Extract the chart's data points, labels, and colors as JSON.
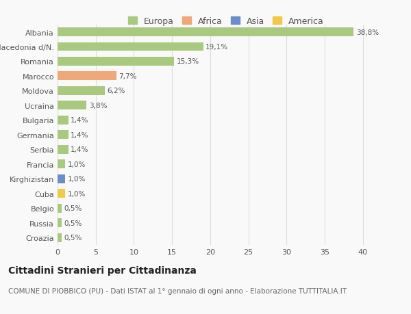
{
  "categories": [
    "Albania",
    "Macedonia d/N.",
    "Romania",
    "Marocco",
    "Moldova",
    "Ucraina",
    "Bulgaria",
    "Germania",
    "Serbia",
    "Francia",
    "Kirghizistan",
    "Cuba",
    "Belgio",
    "Russia",
    "Croazia"
  ],
  "values": [
    38.8,
    19.1,
    15.3,
    7.7,
    6.2,
    3.8,
    1.4,
    1.4,
    1.4,
    1.0,
    1.0,
    1.0,
    0.5,
    0.5,
    0.5
  ],
  "labels": [
    "38,8%",
    "19,1%",
    "15,3%",
    "7,7%",
    "6,2%",
    "3,8%",
    "1,4%",
    "1,4%",
    "1,4%",
    "1,0%",
    "1,0%",
    "1,0%",
    "0,5%",
    "0,5%",
    "0,5%"
  ],
  "colors": [
    "#a8c97f",
    "#a8c97f",
    "#a8c97f",
    "#f0a878",
    "#a8c97f",
    "#a8c97f",
    "#a8c97f",
    "#a8c97f",
    "#a8c97f",
    "#a8c97f",
    "#6a8fc8",
    "#f0c84a",
    "#a8c97f",
    "#a8c97f",
    "#a8c97f"
  ],
  "legend_labels": [
    "Europa",
    "Africa",
    "Asia",
    "America"
  ],
  "legend_colors": [
    "#a8c97f",
    "#f0a878",
    "#6a8fc8",
    "#f0c84a"
  ],
  "title": "Cittadini Stranieri per Cittadinanza",
  "subtitle": "COMUNE DI PIOBBICO (PU) - Dati ISTAT al 1° gennaio di ogni anno - Elaborazione TUTTITALIA.IT",
  "xlim": [
    0,
    42
  ],
  "xticks": [
    0,
    5,
    10,
    15,
    20,
    25,
    30,
    35,
    40
  ],
  "background_color": "#f9f9f9",
  "grid_color": "#dddddd",
  "bar_height": 0.6,
  "title_fontsize": 10,
  "subtitle_fontsize": 7.5,
  "label_fontsize": 7.5,
  "tick_fontsize": 8,
  "legend_fontsize": 9
}
